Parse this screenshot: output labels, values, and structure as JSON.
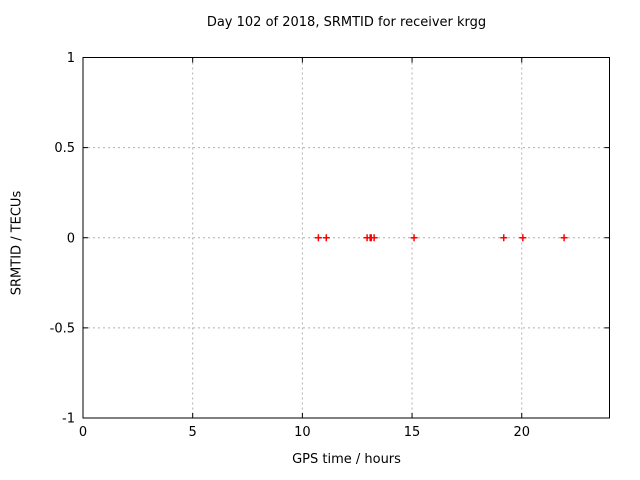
{
  "chart_data": {
    "type": "scatter",
    "title": "Day 102 of 2018, SRMTID for receiver krgg",
    "xlabel": "GPS time / hours",
    "ylabel": "SRMTID / TECUs",
    "xlim": [
      0,
      24
    ],
    "ylim": [
      -1,
      1
    ],
    "xticks": [
      0,
      5,
      10,
      15,
      20
    ],
    "xtick_labels": [
      "0",
      "5",
      "10",
      "15",
      "20"
    ],
    "yticks": [
      1,
      0.5,
      0,
      -0.5,
      -1
    ],
    "ytick_labels": [
      "1",
      "0.5",
      "0",
      "-0.5",
      "-1"
    ],
    "grid": true,
    "legend": "none",
    "series": [
      {
        "name": "SRMTID",
        "marker": "plus",
        "color": "#ff0000",
        "x": [
          10.73,
          11.09,
          12.95,
          13.09,
          13.14,
          13.27,
          15.09,
          19.18,
          20.05,
          21.93
        ],
        "y": [
          0,
          0,
          0,
          0,
          0,
          0,
          0,
          0,
          0,
          0
        ]
      }
    ],
    "colors": {
      "border": "#000000",
      "grid": "#b0b0b0",
      "background": "#ffffff",
      "marker": "#ff0000"
    }
  }
}
